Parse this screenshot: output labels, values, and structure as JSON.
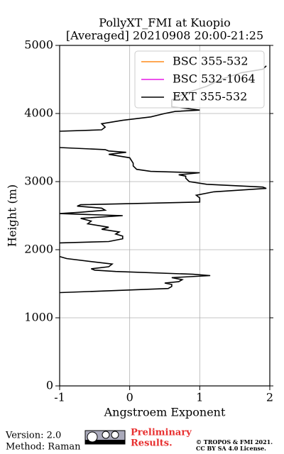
{
  "chart_data": {
    "type": "line",
    "title": "PollyXT_FMI at Kuopio",
    "subtitle": "[Averaged] 20210908 20:00-21:25",
    "xlabel": "Angstroem Exponent",
    "ylabel": "Height (m)",
    "xlim": [
      -1,
      2
    ],
    "xticks": [
      -1,
      0,
      1,
      2
    ],
    "ylim": [
      0,
      5000
    ],
    "yticks": [
      0,
      1000,
      2000,
      3000,
      4000,
      5000
    ],
    "grid": true,
    "legend": "upper right",
    "series": [
      {
        "name": "BSC 355-532",
        "color": "#ff8c1a",
        "heights": [],
        "values": []
      },
      {
        "name": "BSC 532-1064",
        "color": "#e619e6",
        "heights": [],
        "values": []
      },
      {
        "name": "EXT 355-532",
        "color": "#000000",
        "heights": [
          1370,
          1400,
          1430,
          1460,
          1490,
          1510,
          1530,
          1560,
          1590,
          1620,
          1640,
          1680,
          1700,
          1720,
          1750,
          1790,
          1820,
          1870,
          1900,
          1950,
          2100,
          2120,
          2160,
          2200,
          2230,
          2260,
          2300,
          2330,
          2380,
          2420,
          2460,
          2500,
          2530,
          2550,
          2580,
          2610,
          2640,
          2660,
          2700,
          2760,
          2800,
          2850,
          2900,
          2920,
          2960,
          3000,
          3050,
          3080,
          3100,
          3130,
          3150,
          3180,
          3230,
          3270,
          3350,
          3400,
          3430,
          3450,
          3470,
          3500,
          3600,
          3740,
          3760,
          3800,
          3850,
          3900,
          3950,
          4000,
          4030,
          4050,
          4100,
          4200,
          4300,
          4400,
          4500,
          4600,
          4650,
          4700
        ],
        "values": [
          -1.0,
          -0.2,
          0.55,
          0.6,
          0.6,
          0.5,
          0.7,
          0.75,
          0.6,
          1.15,
          0.9,
          -0.2,
          -0.5,
          -0.55,
          -0.3,
          -0.25,
          -0.5,
          -0.9,
          -1.0,
          null,
          -1.0,
          -0.3,
          -0.1,
          -0.1,
          -0.2,
          -0.15,
          -0.4,
          -0.3,
          -0.6,
          -0.55,
          -0.7,
          -0.1,
          -1.0,
          -0.7,
          -0.35,
          -0.4,
          -0.75,
          -0.7,
          1.0,
          1.0,
          0.95,
          1.2,
          1.95,
          1.9,
          1.1,
          0.85,
          0.8,
          0.8,
          0.7,
          1.0,
          0.3,
          0.1,
          0.05,
          0.05,
          0.0,
          -0.3,
          -0.05,
          -0.3,
          -0.35,
          -1.0,
          null,
          -1.0,
          -0.4,
          -0.35,
          -0.4,
          -0.1,
          0.3,
          0.5,
          0.65,
          1.0,
          0.6,
          0.6,
          0.8,
          1.1,
          1.3,
          1.6,
          1.9,
          1.95
        ]
      }
    ]
  },
  "footer": {
    "version": "Version: 2.0",
    "method": "Method: Raman",
    "preliminary": "Preliminary",
    "results": "Results.",
    "copyright": "© TROPOS & FMI 2021.",
    "license": "CC BY SA 4.0 License."
  }
}
